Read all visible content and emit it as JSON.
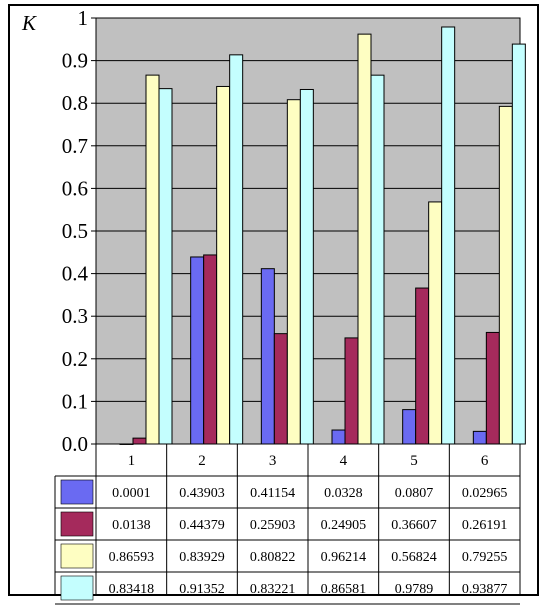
{
  "chart_data": {
    "type": "bar",
    "title": "",
    "ylabel": "K",
    "xlabel": "",
    "ylim": [
      0,
      1
    ],
    "y_ticks": [
      "0.0",
      "0.1",
      "0.2",
      "0.3",
      "0.4",
      "0.5",
      "0.6",
      "0.7",
      "0.8",
      "0.9",
      "1"
    ],
    "categories": [
      "1",
      "2",
      "3",
      "4",
      "5",
      "6"
    ],
    "grid": true,
    "legend": "data table below chart",
    "series": [
      {
        "color": "#6a6af2",
        "values": [
          0.0001,
          0.43903,
          0.41154,
          0.0328,
          0.0807,
          0.02965
        ],
        "labels": [
          "0.0001",
          "0.43903",
          "0.41154",
          "0.0328",
          "0.0807",
          "0.02965"
        ]
      },
      {
        "color": "#a52a5c",
        "values": [
          0.0138,
          0.44379,
          0.25903,
          0.24905,
          0.36607,
          0.26191
        ],
        "labels": [
          "0.0138",
          "0.44379",
          "0.25903",
          "0.24905",
          "0.36607",
          "0.26191"
        ]
      },
      {
        "color": "#fefec2",
        "values": [
          0.86593,
          0.83929,
          0.80822,
          0.96214,
          0.56824,
          0.79255
        ],
        "labels": [
          "0.86593",
          "0.83929",
          "0.80822",
          "0.96214",
          "0.56824",
          "0.79255"
        ]
      },
      {
        "color": "#c4fefe",
        "values": [
          0.83418,
          0.91352,
          0.83221,
          0.86581,
          0.9789,
          0.93877
        ],
        "labels": [
          "0.83418",
          "0.91352",
          "0.83221",
          "0.86581",
          "0.9789",
          "0.93877"
        ]
      }
    ],
    "plot_background": "#c0c0c0"
  }
}
